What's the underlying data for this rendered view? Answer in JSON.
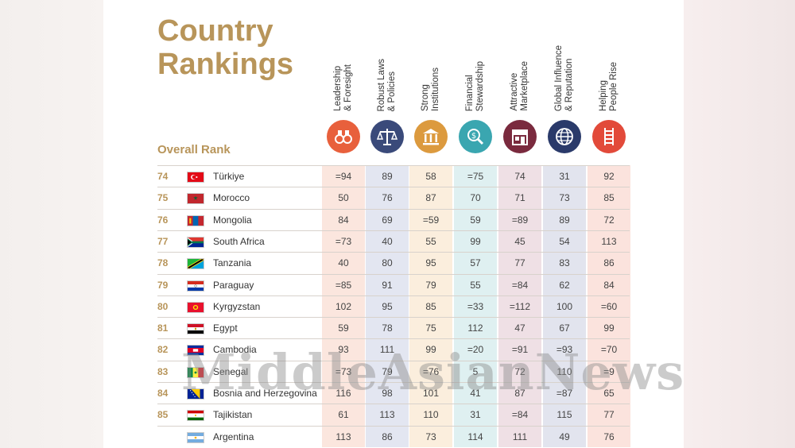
{
  "title": {
    "line1": "Country",
    "line2": "Rankings"
  },
  "overall_rank_label": "Overall Rank",
  "columns": [
    {
      "label": "Leadership\n& Foresight",
      "icon": "binoculars-icon",
      "color": "#e8603c",
      "bg": "#fbe6de"
    },
    {
      "label": "Robust Laws\n& Policies",
      "icon": "scales-icon",
      "color": "#3a4a7a",
      "bg": "#e3e6f1"
    },
    {
      "label": "Strong\nInstitutions",
      "icon": "institution-icon",
      "color": "#dc9a3e",
      "bg": "#fbeedd"
    },
    {
      "label": "Financial\nStewardship",
      "icon": "money-search-icon",
      "color": "#3aa6b0",
      "bg": "#dff0f1"
    },
    {
      "label": "Attractive\nMarketplace",
      "icon": "storefront-icon",
      "color": "#7a2a3e",
      "bg": "#efe0e5"
    },
    {
      "label": "Global Influence\n& Reputation",
      "icon": "globe-icon",
      "color": "#2a3a6a",
      "bg": "#e2e4ee"
    },
    {
      "label": "Helping\nPeople Rise",
      "icon": "ladder-icon",
      "color": "#e24a3a",
      "bg": "#fbe3dd"
    }
  ],
  "rows": [
    {
      "rank": "74",
      "country": "Türkiye",
      "flag": "turkey-flag",
      "values": [
        "=94",
        "89",
        "58",
        "=75",
        "74",
        "31",
        "92"
      ]
    },
    {
      "rank": "75",
      "country": "Morocco",
      "flag": "morocco-flag",
      "values": [
        "50",
        "76",
        "87",
        "70",
        "71",
        "73",
        "85"
      ]
    },
    {
      "rank": "76",
      "country": "Mongolia",
      "flag": "mongolia-flag",
      "values": [
        "84",
        "69",
        "=59",
        "59",
        "=89",
        "89",
        "72"
      ]
    },
    {
      "rank": "77",
      "country": "South Africa",
      "flag": "south-africa-flag",
      "values": [
        "=73",
        "40",
        "55",
        "99",
        "45",
        "54",
        "113"
      ]
    },
    {
      "rank": "78",
      "country": "Tanzania",
      "flag": "tanzania-flag",
      "values": [
        "40",
        "80",
        "95",
        "57",
        "77",
        "83",
        "86"
      ]
    },
    {
      "rank": "79",
      "country": "Paraguay",
      "flag": "paraguay-flag",
      "values": [
        "=85",
        "91",
        "79",
        "55",
        "=84",
        "62",
        "84"
      ]
    },
    {
      "rank": "80",
      "country": "Kyrgyzstan",
      "flag": "kyrgyzstan-flag",
      "values": [
        "102",
        "95",
        "85",
        "=33",
        "=112",
        "100",
        "=60"
      ]
    },
    {
      "rank": "81",
      "country": "Egypt",
      "flag": "egypt-flag",
      "values": [
        "59",
        "78",
        "75",
        "112",
        "47",
        "67",
        "99"
      ]
    },
    {
      "rank": "82",
      "country": "Cambodia",
      "flag": "cambodia-flag",
      "values": [
        "93",
        "111",
        "99",
        "=20",
        "=91",
        "=93",
        "=70"
      ]
    },
    {
      "rank": "83",
      "country": "Senegal",
      "flag": "senegal-flag",
      "values": [
        "=73",
        "79",
        "=76",
        "5",
        "72",
        "110",
        "=9"
      ]
    },
    {
      "rank": "84",
      "country": "Bosnia and Herzegovina",
      "flag": "bosnia-flag",
      "values": [
        "116",
        "98",
        "101",
        "41",
        "87",
        "=87",
        "65"
      ]
    },
    {
      "rank": "85",
      "country": "Tajikistan",
      "flag": "tajikistan-flag",
      "values": [
        "61",
        "113",
        "110",
        "31",
        "=84",
        "115",
        "77"
      ]
    },
    {
      "rank": "",
      "country": "Argentina",
      "flag": "argentina-flag",
      "values": [
        "113",
        "86",
        "73",
        "114",
        "111",
        "49",
        "76"
      ]
    }
  ],
  "watermark": "MiddleAsianNews"
}
